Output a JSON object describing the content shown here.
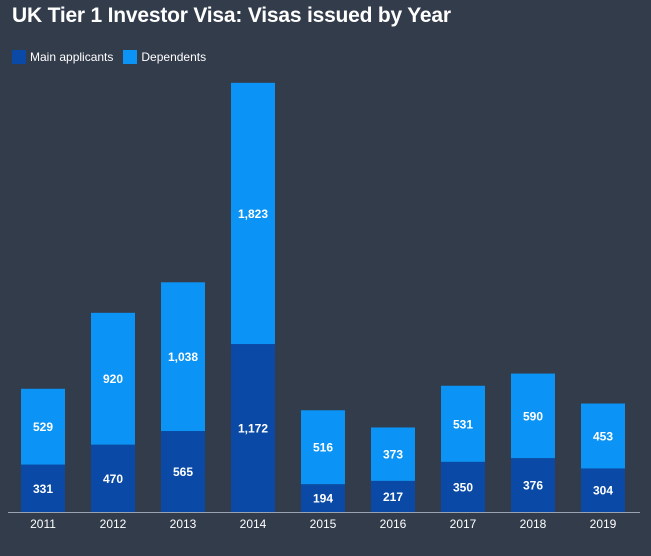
{
  "chart_data": {
    "type": "bar",
    "stacked": true,
    "title": "UK Tier 1 Investor Visa: Visas issued by Year",
    "categories": [
      "2011",
      "2012",
      "2013",
      "2014",
      "2015",
      "2016",
      "2017",
      "2018",
      "2019"
    ],
    "series": [
      {
        "name": "Main applicants",
        "color": "#0a4aa6",
        "values": [
          331,
          470,
          565,
          1172,
          194,
          217,
          350,
          376,
          304
        ],
        "labels": [
          "331",
          "470",
          "565",
          "1,172",
          "194",
          "217",
          "350",
          "376",
          "304"
        ]
      },
      {
        "name": "Dependents",
        "color": "#0b93f5",
        "values": [
          529,
          920,
          1038,
          1823,
          516,
          373,
          531,
          590,
          453
        ],
        "labels": [
          "529",
          "920",
          "1,038",
          "1,823",
          "516",
          "373",
          "531",
          "590",
          "453"
        ]
      }
    ],
    "ylim": [
      0,
      3000
    ],
    "grid": false,
    "legend_position": "top-left",
    "background": "#333c4b"
  }
}
